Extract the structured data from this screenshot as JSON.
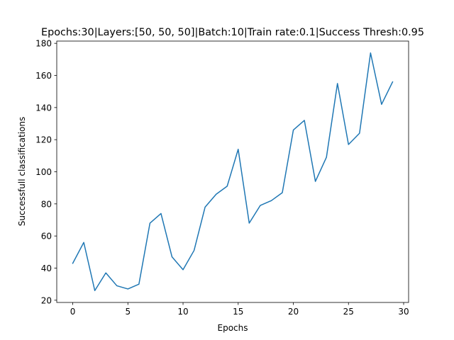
{
  "chart_data": {
    "type": "line",
    "title": "Epochs:30|Layers:[50, 50, 50]|Batch:10|Train rate:0.1|Success Thresh:0.95",
    "xlabel": "Epochs",
    "ylabel": "Successfull classifications",
    "xlim": [
      -1.45,
      30.45
    ],
    "ylim": [
      18.6,
      181.4
    ],
    "xticks": [
      0,
      5,
      10,
      15,
      20,
      25,
      30
    ],
    "yticks": [
      20,
      40,
      60,
      80,
      100,
      120,
      140,
      160,
      180
    ],
    "grid": false,
    "line_color": "#1f77b4",
    "series": [
      {
        "x": [
          0,
          1,
          2,
          3,
          4,
          5,
          6,
          7,
          8,
          9,
          10,
          11,
          12,
          13,
          14,
          15,
          16,
          17,
          18,
          19,
          20,
          21,
          22,
          23,
          24,
          25,
          26,
          27,
          28,
          29
        ],
        "values": [
          43,
          56,
          26,
          37,
          29,
          27,
          30,
          68,
          74,
          47,
          39,
          51,
          78,
          86,
          91,
          114,
          68,
          79,
          82,
          87,
          126,
          132,
          94,
          109,
          155,
          117,
          124,
          174,
          142,
          156
        ]
      }
    ]
  }
}
